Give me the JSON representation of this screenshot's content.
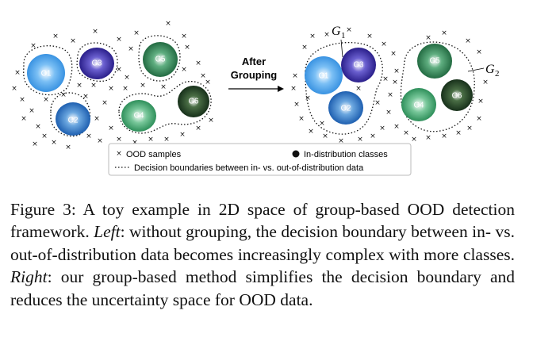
{
  "figure": {
    "left_panel": {
      "classes": [
        {
          "label": "C1",
          "color": "#2f8de0"
        },
        {
          "label": "C2",
          "color": "#1e5fb0"
        },
        {
          "label": "C3",
          "color": "#3a2f9a"
        },
        {
          "label": "C4",
          "color": "#2e8f5a"
        },
        {
          "label": "C5",
          "color": "#2e7a4e"
        },
        {
          "label": "C6",
          "color": "#1f3d1f"
        }
      ]
    },
    "arrow_label_line1": "After",
    "arrow_label_line2": "Grouping",
    "right_panel": {
      "group1_name": "G",
      "group1_sub": "1",
      "group2_name": "G",
      "group2_sub": "2",
      "classes": [
        {
          "label": "C1",
          "color": "#2f8de0"
        },
        {
          "label": "C3",
          "color": "#3a2f9a"
        },
        {
          "label": "C2",
          "color": "#1e5fb0"
        },
        {
          "label": "C5",
          "color": "#2e7a4e"
        },
        {
          "label": "C6",
          "color": "#1f3d1f"
        },
        {
          "label": "C4",
          "color": "#2e8f5a"
        }
      ]
    },
    "legend": {
      "cross_symbol": "×",
      "ood_label": "OOD samples",
      "in_dist_label": "In-distribution classes",
      "boundary_label": "Decision boundaries between in- vs. out-of-distribution data"
    }
  },
  "caption": {
    "prefix": "Figure 3:  A toy example in 2D space of group-based OOD detection framework. ",
    "left_label": "Left",
    "left_text": ": without grouping, the decision boundary between in- vs. out-of-distribution data becomes increasingly complex with more classes. ",
    "right_label": "Right",
    "right_text": ": our group-based method simplifies the decision boundary and reduces the uncertainty space for OOD data."
  }
}
